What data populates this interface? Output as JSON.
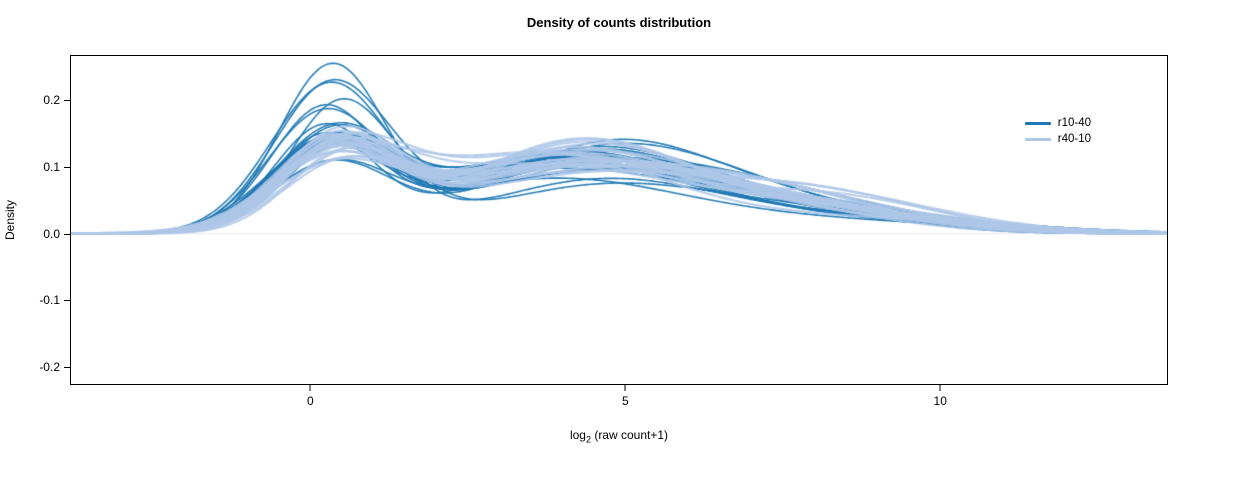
{
  "title": "Density of counts distribution",
  "axes": {
    "xlabel_prefix": "log",
    "xlabel_sub": "2",
    "xlabel_suffix": " (raw count+1)",
    "ylabel": "Density"
  },
  "chart_data": {
    "type": "line",
    "subtype": "density-spaghetti",
    "title": "Density of counts distribution",
    "xlabel": "log2 (raw count+1)",
    "ylabel": "Density",
    "xlim": [
      -3.8,
      13.6
    ],
    "ylim": [
      -0.225,
      0.266
    ],
    "xticks": [
      0,
      5,
      10
    ],
    "xtick_labels": [
      "0",
      "5",
      "10"
    ],
    "yticks": [
      -0.2,
      -0.1,
      0.0,
      0.1,
      0.2
    ],
    "ytick_labels": [
      "-0.2",
      "-0.1",
      "0.0",
      "0.1",
      "0.2"
    ],
    "grid": false,
    "legend_position": "top-right-inside",
    "zero_line_color": "#ececec",
    "series": [
      {
        "name": "r10-40",
        "color": "#1f78b4",
        "n_curves": 28,
        "line_width": 1.6,
        "alpha": 0.95,
        "tall_peak_every": 9,
        "tall_peak_boost": 2.1,
        "peak1_max_height": 0.235,
        "components": [
          {
            "center": 0.35,
            "sd": 0.9,
            "weight": 0.3,
            "center_jitter": 0.15,
            "sd_jitter": 0.12,
            "weight_jitter": 0.22
          },
          {
            "center": 4.2,
            "sd": 1.9,
            "weight": 0.5,
            "center_jitter": 0.55,
            "sd_jitter": 0.15,
            "weight_jitter": 0.2
          },
          {
            "center": 7.5,
            "sd": 2.2,
            "weight": 0.2,
            "center_jitter": 0.6,
            "sd_jitter": 0.2,
            "weight_jitter": 0.3
          }
        ]
      },
      {
        "name": "r40-10",
        "color": "#aec7e8",
        "n_curves": 28,
        "line_width": 2.2,
        "alpha": 0.85,
        "tall_peak_every": 0,
        "tall_peak_boost": 1,
        "peak1_max_height": 0.16,
        "components": [
          {
            "center": 0.45,
            "sd": 0.95,
            "weight": 0.27,
            "center_jitter": 0.15,
            "sd_jitter": 0.12,
            "weight_jitter": 0.2
          },
          {
            "center": 4.0,
            "sd": 2.0,
            "weight": 0.51,
            "center_jitter": 0.6,
            "sd_jitter": 0.15,
            "weight_jitter": 0.2
          },
          {
            "center": 7.6,
            "sd": 2.2,
            "weight": 0.22,
            "center_jitter": 0.6,
            "sd_jitter": 0.2,
            "weight_jitter": 0.3
          }
        ]
      }
    ]
  }
}
